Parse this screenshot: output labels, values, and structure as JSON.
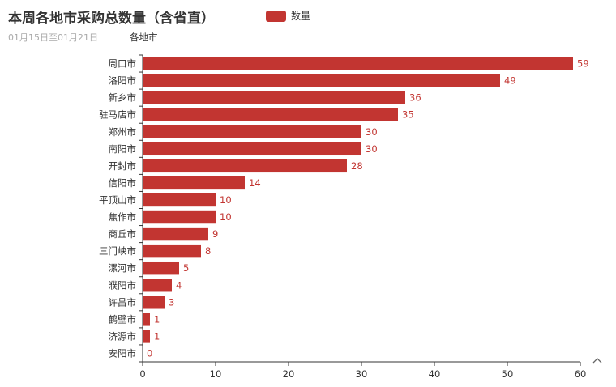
{
  "chart_data": {
    "type": "bar",
    "orientation": "horizontal",
    "title": "本周各地市采购总数量（含省直）",
    "subtitle": "01月15日至01月21日",
    "ylabel": "各地市",
    "xlabel": "",
    "categories": [
      "周口市",
      "洛阳市",
      "新乡市",
      "驻马店市",
      "郑州市",
      "南阳市",
      "开封市",
      "信阳市",
      "平顶山市",
      "焦作市",
      "商丘市",
      "三门峡市",
      "漯河市",
      "濮阳市",
      "许昌市",
      "鹤壁市",
      "济源市",
      "安阳市"
    ],
    "series": [
      {
        "name": "数量",
        "values": [
          59,
          49,
          36,
          35,
          30,
          30,
          28,
          14,
          10,
          10,
          9,
          8,
          5,
          4,
          3,
          1,
          1,
          0
        ]
      }
    ],
    "xlim": [
      0,
      60
    ],
    "xticks": [
      0,
      10,
      20,
      30,
      40,
      50,
      60
    ],
    "grid": false,
    "legend_position": "top",
    "bar_color": "#c23531",
    "data_labels": true
  },
  "toolbox": {
    "icon": "arrow-up-icon"
  }
}
